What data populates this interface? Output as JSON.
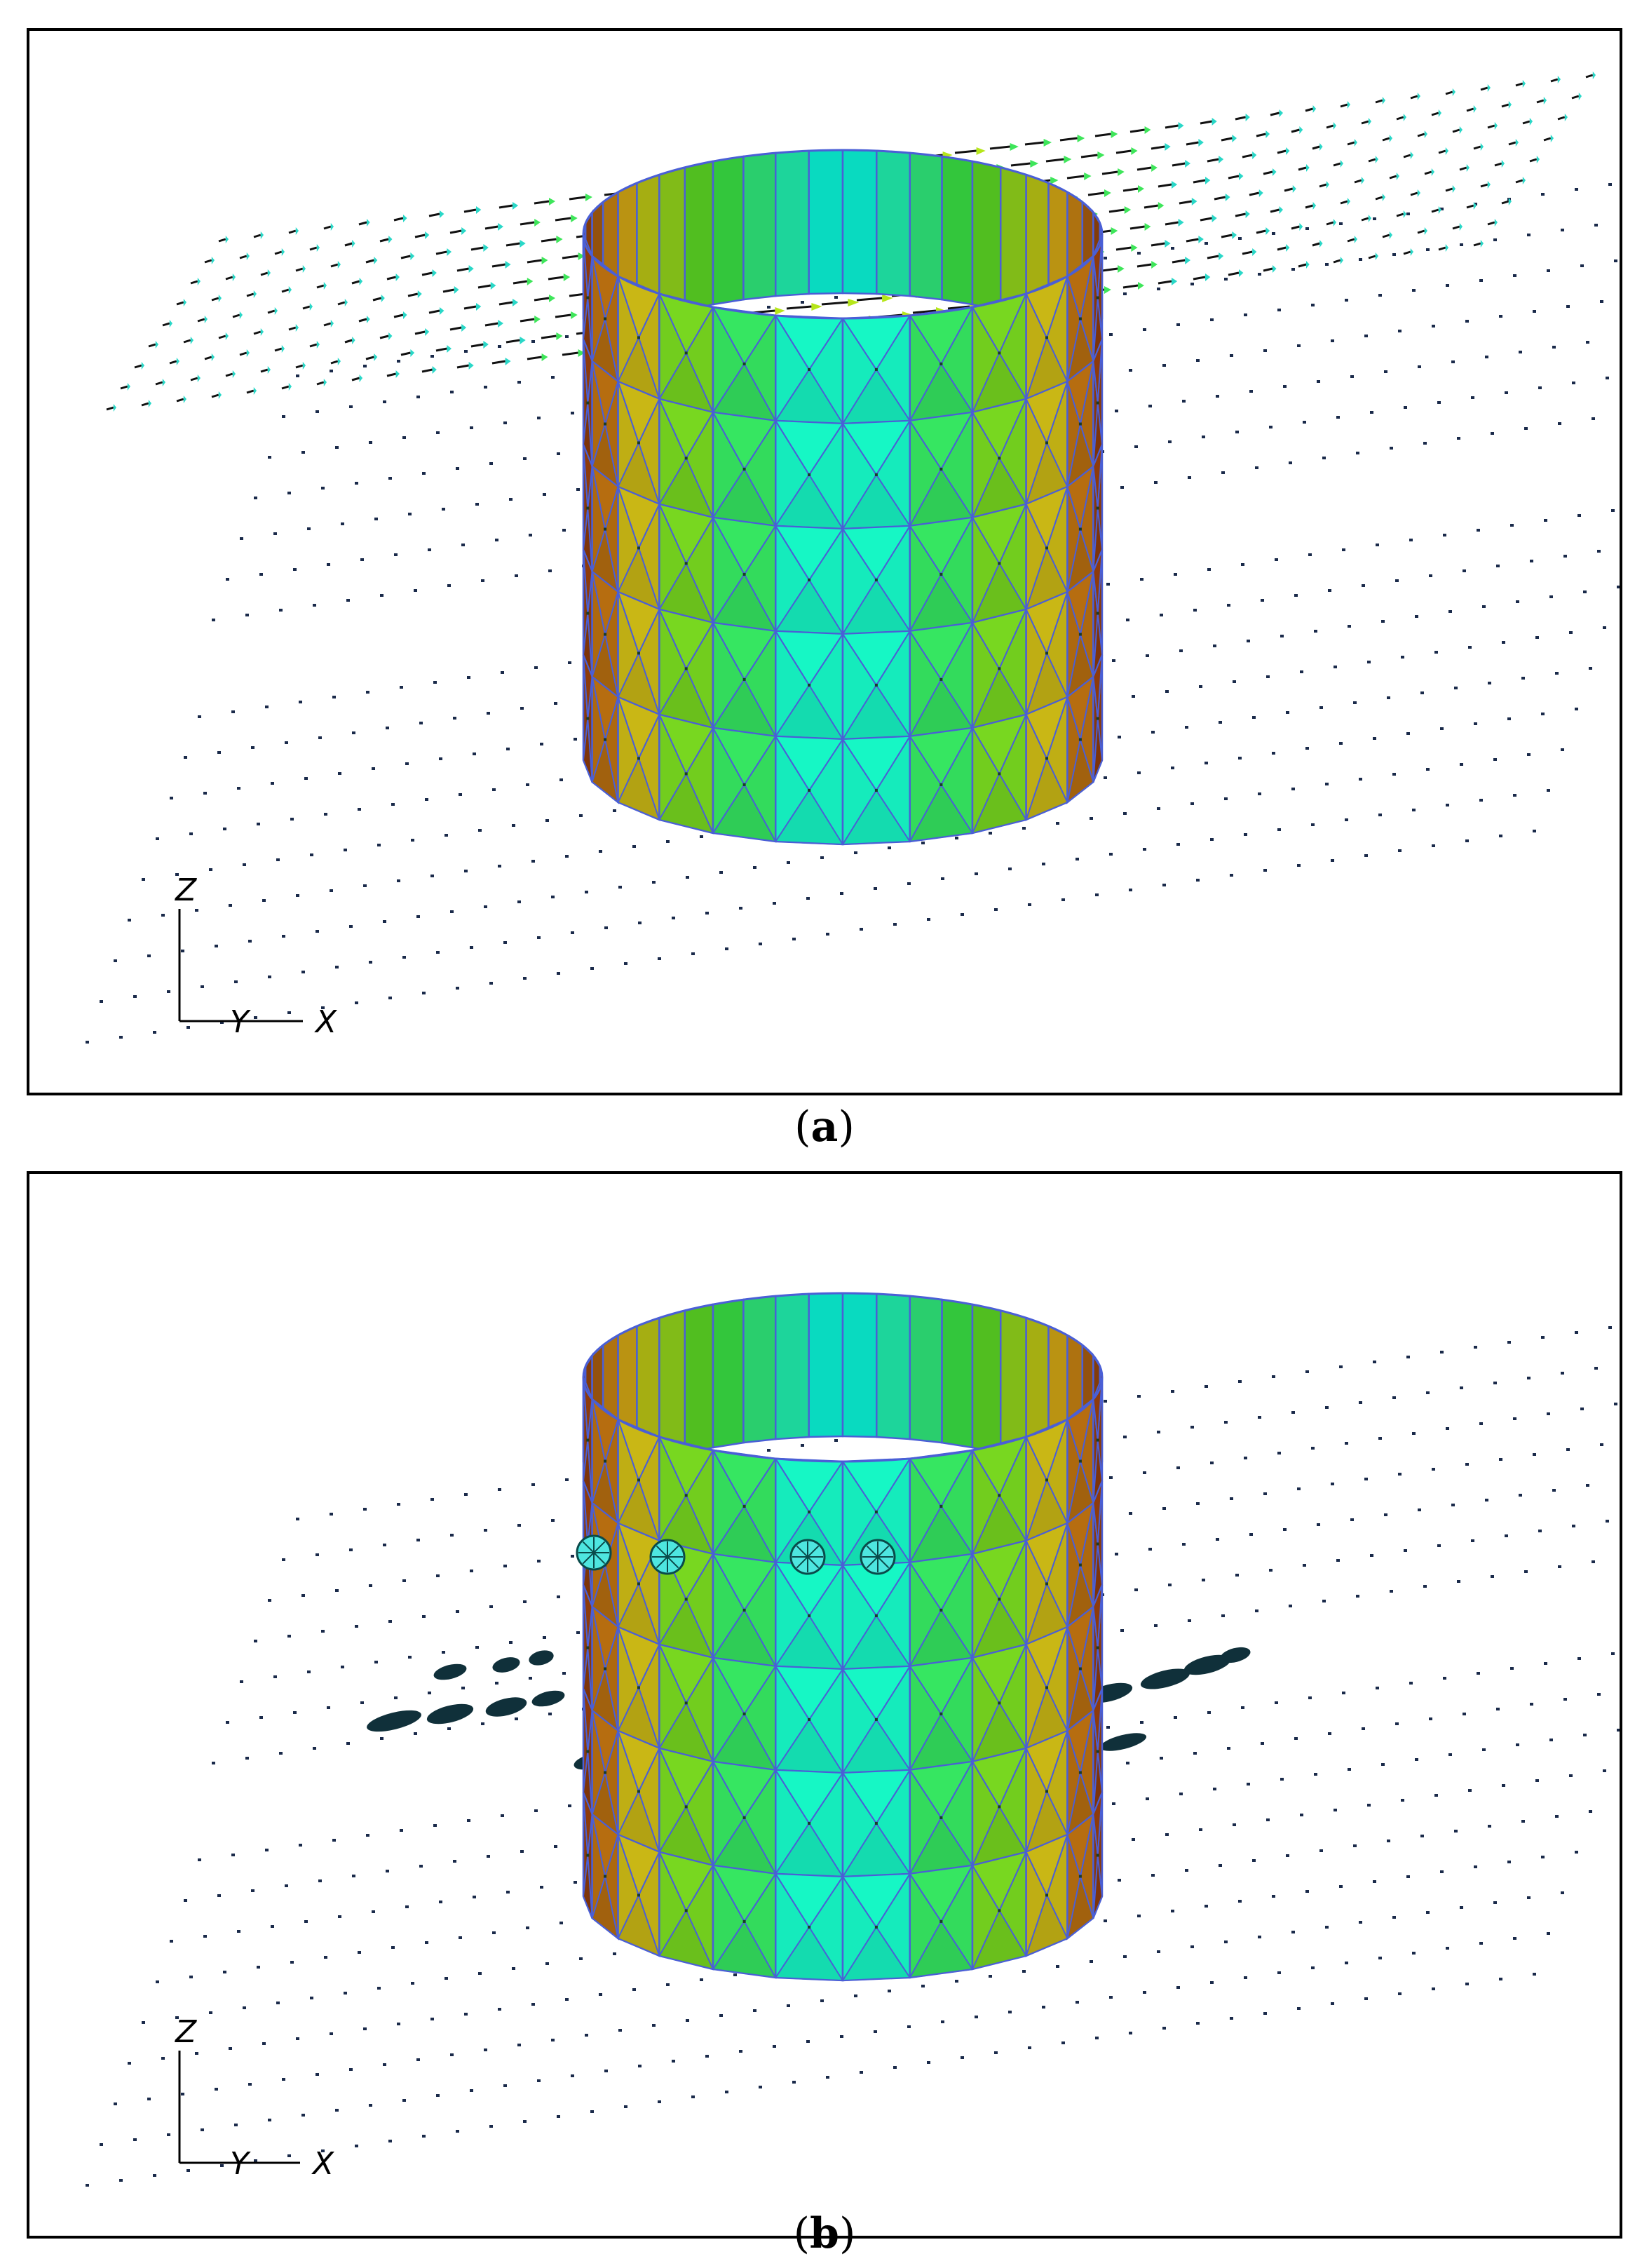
{
  "panels": [
    {
      "id": "a",
      "caption_open": "(",
      "caption_letter": "a",
      "caption_close": ")",
      "axes": {
        "z": "Z",
        "y": "Y",
        "x": "X"
      },
      "show_arrows": true,
      "show_probes": false,
      "show_ellipses": false
    },
    {
      "id": "b",
      "caption_open": "(",
      "caption_letter": "b",
      "caption_close": ")",
      "axes": {
        "z": "Z",
        "y": "Y",
        "x": "X"
      },
      "show_arrows": false,
      "show_probes": true,
      "show_ellipses": true
    }
  ],
  "colors": {
    "mesh_edge": "#4a5fd6",
    "panel_border": "#000000",
    "grid_dot": "#1a2a4a",
    "probe": "#4ee6e0"
  }
}
